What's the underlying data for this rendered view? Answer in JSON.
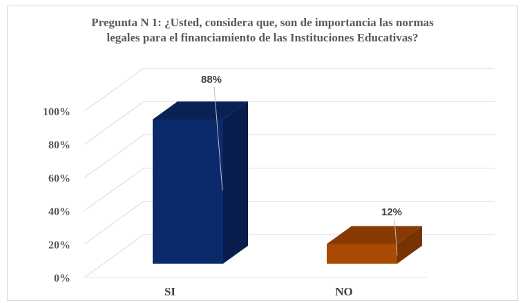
{
  "chart_data": {
    "type": "bar",
    "title": [
      "Pregunta N 1: ¿Usted, considera que, son de importancia las normas",
      "legales para el financiamiento de las Instituciones Educativas?"
    ],
    "categories": [
      "SI",
      "NO"
    ],
    "values": [
      88,
      12
    ],
    "data_labels": [
      "88%",
      "12%"
    ],
    "y_ticks": [
      "0%",
      "20%",
      "40%",
      "60%",
      "80%",
      "100%"
    ],
    "ylim": [
      0,
      100
    ],
    "grid": true,
    "colors": {
      "SI": "#0b2a6b",
      "NO": "#a94a04"
    },
    "style": "3d-column"
  }
}
